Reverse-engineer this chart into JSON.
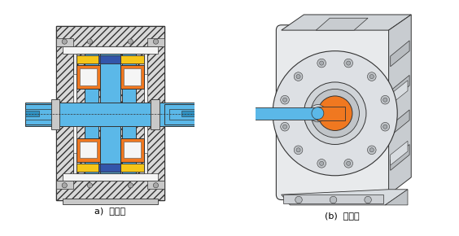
{
  "fig_width": 5.64,
  "fig_height": 2.9,
  "dpi": 100,
  "background_color": "#ffffff",
  "label_a": "a)  단면도",
  "label_b": "(b)  입체도",
  "label_fontsize": 8,
  "color_blue": "#5bb8e8",
  "color_orange": "#f07820",
  "color_yellow": "#f5c518",
  "color_dark_blue": "#3355aa",
  "color_gray_light": "#e8e8e8",
  "color_gray_mid": "#c8c8c8",
  "color_gray_dark": "#a8a8a8",
  "color_hatch_bg": "#d8d8d8",
  "color_white": "#f5f5f5",
  "color_line": "#555555",
  "color_line_dark": "#333333"
}
